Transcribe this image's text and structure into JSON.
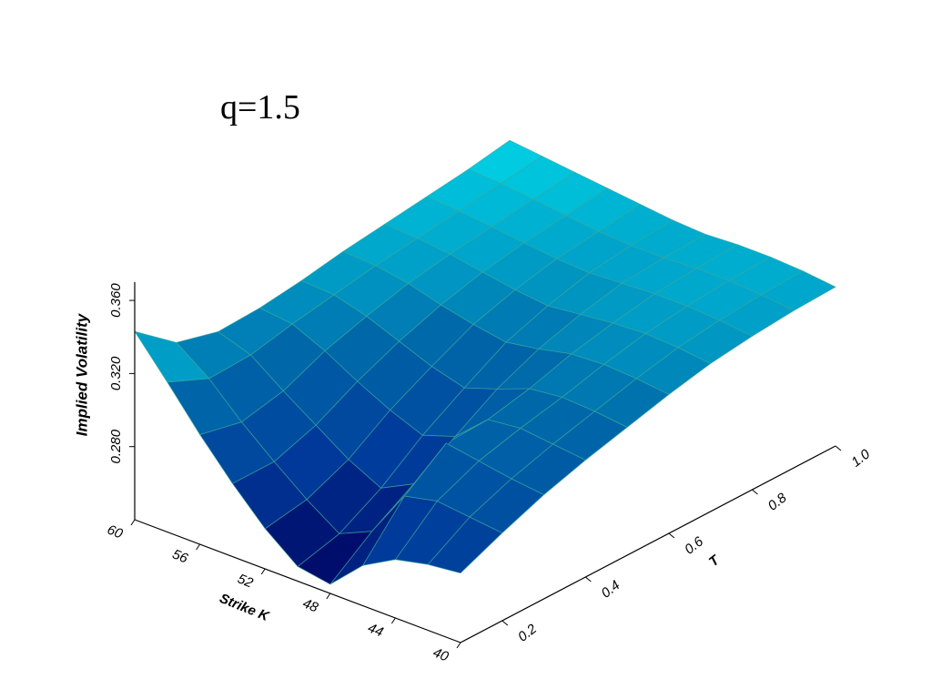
{
  "title": "q=1.5",
  "chart_data": {
    "type": "surface",
    "title": "q=1.5",
    "xlabel": "Strike K",
    "ylabel": "T",
    "zlabel": "Implied Volatility",
    "x_ticks": [
      "60",
      "56",
      "52",
      "48",
      "44",
      "40"
    ],
    "y_ticks": [
      "0.2",
      "0.4",
      "0.6",
      "0.8",
      "1.0"
    ],
    "z_ticks": [
      "0.280",
      "0.320",
      "0.360"
    ],
    "xlim": [
      40,
      60
    ],
    "ylim": [
      0.1,
      1.0
    ],
    "zlim": [
      0.24,
      0.37
    ],
    "colormap": [
      "#00005f",
      "#003a9a",
      "#006aaa",
      "#00e8f0"
    ],
    "grid_color": "#3aa89a",
    "surface": {
      "K": [
        60,
        58,
        56,
        54,
        52,
        50,
        48,
        46,
        44,
        42,
        40
      ],
      "T": [
        0.1,
        0.2,
        0.3,
        0.4,
        0.5,
        0.6,
        0.7,
        0.8,
        0.9,
        1.0
      ],
      "IV": [
        [
          0.343,
          0.325,
          0.319,
          0.32,
          0.323,
          0.327,
          0.33,
          0.333,
          0.336,
          0.34
        ],
        [
          0.322,
          0.312,
          0.313,
          0.318,
          0.322,
          0.326,
          0.329,
          0.332,
          0.335,
          0.338
        ],
        [
          0.3,
          0.295,
          0.3,
          0.31,
          0.317,
          0.323,
          0.327,
          0.33,
          0.333,
          0.336
        ],
        [
          0.28,
          0.28,
          0.288,
          0.3,
          0.31,
          0.318,
          0.324,
          0.328,
          0.331,
          0.334
        ],
        [
          0.262,
          0.266,
          0.276,
          0.291,
          0.303,
          0.314,
          0.321,
          0.326,
          0.329,
          0.332
        ],
        [
          0.248,
          0.254,
          0.267,
          0.284,
          0.298,
          0.311,
          0.319,
          0.325,
          0.328,
          0.33
        ],
        [
          0.245,
          0.262,
          0.276,
          0.29,
          0.304,
          0.314,
          0.321,
          0.326,
          0.328,
          0.329
        ],
        [
          0.262,
          0.288,
          0.305,
          0.306,
          0.311,
          0.318,
          0.323,
          0.327,
          0.329,
          0.33
        ],
        [
          0.272,
          0.292,
          0.302,
          0.308,
          0.313,
          0.319,
          0.324,
          0.327,
          0.329,
          0.33
        ],
        [
          0.276,
          0.29,
          0.299,
          0.306,
          0.312,
          0.318,
          0.323,
          0.326,
          0.328,
          0.329
        ],
        [
          0.278,
          0.288,
          0.297,
          0.304,
          0.31,
          0.316,
          0.321,
          0.324,
          0.326,
          0.327
        ]
      ]
    }
  }
}
